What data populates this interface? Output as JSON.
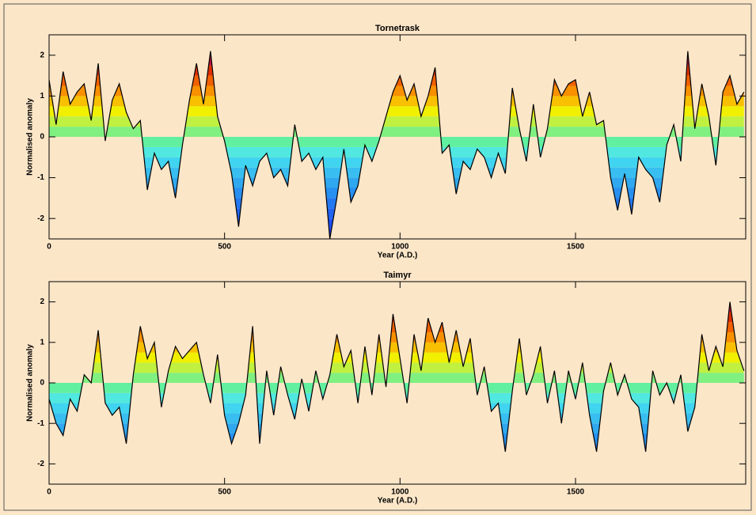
{
  "chart_data": [
    {
      "type": "line",
      "title": "Tornetrask",
      "xlabel": "Year (A.D.)",
      "ylabel": "Normalised anomaly",
      "x": [
        0,
        20,
        40,
        60,
        80,
        100,
        120,
        140,
        160,
        180,
        200,
        220,
        240,
        260,
        280,
        300,
        320,
        340,
        360,
        380,
        400,
        420,
        440,
        460,
        480,
        500,
        520,
        540,
        560,
        580,
        600,
        620,
        640,
        660,
        680,
        700,
        720,
        740,
        760,
        780,
        800,
        820,
        840,
        860,
        880,
        900,
        920,
        940,
        960,
        980,
        1000,
        1020,
        1040,
        1060,
        1080,
        1100,
        1120,
        1140,
        1160,
        1180,
        1200,
        1220,
        1240,
        1260,
        1280,
        1300,
        1320,
        1340,
        1360,
        1380,
        1400,
        1420,
        1440,
        1460,
        1480,
        1500,
        1520,
        1540,
        1560,
        1580,
        1600,
        1620,
        1640,
        1660,
        1680,
        1700,
        1720,
        1740,
        1760,
        1780,
        1800,
        1820,
        1840,
        1860,
        1880,
        1900,
        1920,
        1940,
        1960,
        1980
      ],
      "values": [
        1.4,
        0.3,
        1.6,
        0.8,
        1.1,
        1.3,
        0.4,
        1.8,
        -0.1,
        0.9,
        1.3,
        0.6,
        0.2,
        0.4,
        -1.3,
        -0.4,
        -0.8,
        -0.6,
        -1.5,
        -0.2,
        0.9,
        1.8,
        0.8,
        2.1,
        0.5,
        -0.1,
        -0.9,
        -2.2,
        -0.7,
        -1.2,
        -0.6,
        -0.4,
        -1.0,
        -0.8,
        -1.2,
        0.3,
        -0.6,
        -0.4,
        -0.8,
        -0.5,
        -2.5,
        -1.5,
        -0.3,
        -1.6,
        -1.2,
        -0.2,
        -0.6,
        -0.1,
        0.5,
        1.1,
        1.5,
        0.9,
        1.3,
        0.5,
        1.0,
        1.7,
        -0.4,
        -0.2,
        -1.4,
        -0.6,
        -0.8,
        -0.3,
        -0.5,
        -1.0,
        -0.4,
        -0.9,
        1.2,
        0.2,
        -0.6,
        0.8,
        -0.5,
        0.2,
        1.4,
        1.0,
        1.3,
        1.4,
        0.5,
        1.1,
        0.3,
        0.4,
        -1.0,
        -1.8,
        -0.9,
        -1.9,
        -0.5,
        -0.8,
        -1.0,
        -1.6,
        -0.2,
        0.3,
        -0.6,
        2.1,
        0.2,
        1.3,
        0.5,
        -0.7,
        1.1,
        1.5,
        0.8,
        1.1
      ],
      "color": "#000000",
      "band_colors": [
        "#1e3cff",
        "#1e50ff",
        "#2064f0",
        "#2478f0",
        "#2890f0",
        "#30a8f0",
        "#38bef0",
        "#40d4f0",
        "#50e8e0",
        "#60f0a0",
        "#80f080",
        "#c0f040",
        "#f0f000",
        "#f8c000",
        "#f89000",
        "#f06000",
        "#e03000",
        "#c01040",
        "#8020a0",
        "#4020c0"
      ],
      "xlim": [
        0,
        1985
      ],
      "xticks": [
        0,
        500,
        1000,
        1500
      ],
      "ylim": [
        -2.5,
        2.5
      ],
      "yticks": [
        -2,
        -1,
        0,
        1,
        2
      ]
    },
    {
      "type": "line",
      "title": "Taimyr",
      "xlabel": "Year (A.D.)",
      "ylabel": "Normalised anomaly",
      "x": [
        0,
        20,
        40,
        60,
        80,
        100,
        120,
        140,
        160,
        180,
        200,
        220,
        240,
        260,
        280,
        300,
        320,
        340,
        360,
        380,
        400,
        420,
        440,
        460,
        480,
        500,
        520,
        540,
        560,
        580,
        600,
        620,
        640,
        660,
        680,
        700,
        720,
        740,
        760,
        780,
        800,
        820,
        840,
        860,
        880,
        900,
        920,
        940,
        960,
        980,
        1000,
        1020,
        1040,
        1060,
        1080,
        1100,
        1120,
        1140,
        1160,
        1180,
        1200,
        1220,
        1240,
        1260,
        1280,
        1300,
        1320,
        1340,
        1360,
        1380,
        1400,
        1420,
        1440,
        1460,
        1480,
        1500,
        1520,
        1540,
        1560,
        1580,
        1600,
        1620,
        1640,
        1660,
        1680,
        1700,
        1720,
        1740,
        1760,
        1780,
        1800,
        1820,
        1840,
        1860,
        1880,
        1900,
        1920,
        1940,
        1960,
        1980
      ],
      "values": [
        -0.4,
        -1.0,
        -1.3,
        -0.4,
        -0.7,
        0.2,
        0.0,
        1.3,
        -0.5,
        -0.8,
        -0.6,
        -1.5,
        0.2,
        1.4,
        0.6,
        1.0,
        -0.6,
        0.3,
        0.9,
        0.6,
        0.8,
        1.0,
        0.2,
        -0.5,
        0.7,
        -0.8,
        -1.5,
        -1.0,
        -0.3,
        1.4,
        -1.5,
        0.3,
        -0.8,
        0.4,
        -0.3,
        -0.9,
        0.1,
        -0.7,
        0.3,
        -0.4,
        0.2,
        1.2,
        0.4,
        0.8,
        -0.5,
        0.9,
        -0.3,
        1.2,
        -0.1,
        1.7,
        0.6,
        -0.5,
        1.2,
        0.3,
        1.6,
        1.0,
        1.5,
        0.5,
        1.3,
        0.4,
        1.1,
        -0.3,
        0.4,
        -0.7,
        -0.5,
        -1.7,
        -0.2,
        1.1,
        -0.3,
        0.2,
        0.9,
        -0.5,
        0.3,
        -1.0,
        0.3,
        -0.4,
        0.5,
        -0.8,
        -1.7,
        -0.2,
        0.5,
        -0.3,
        0.2,
        -0.4,
        -0.6,
        -1.7,
        0.3,
        -0.3,
        0.0,
        -0.5,
        0.2,
        -1.2,
        -0.6,
        1.2,
        0.3,
        0.9,
        0.4,
        2.0,
        0.8,
        0.3
      ],
      "color": "#000000",
      "band_colors": [
        "#1e3cff",
        "#1e50ff",
        "#2064f0",
        "#2478f0",
        "#2890f0",
        "#30a8f0",
        "#38bef0",
        "#40d4f0",
        "#50e8e0",
        "#60f0a0",
        "#80f080",
        "#c0f040",
        "#f0f000",
        "#f8c000",
        "#f89000",
        "#f06000",
        "#e03000",
        "#c01040",
        "#8020a0",
        "#4020c0"
      ],
      "xlim": [
        0,
        1985
      ],
      "xticks": [
        0,
        500,
        1000,
        1500
      ],
      "ylim": [
        -2.5,
        2.5
      ],
      "yticks": [
        -2,
        -1,
        0,
        1,
        2
      ]
    }
  ]
}
